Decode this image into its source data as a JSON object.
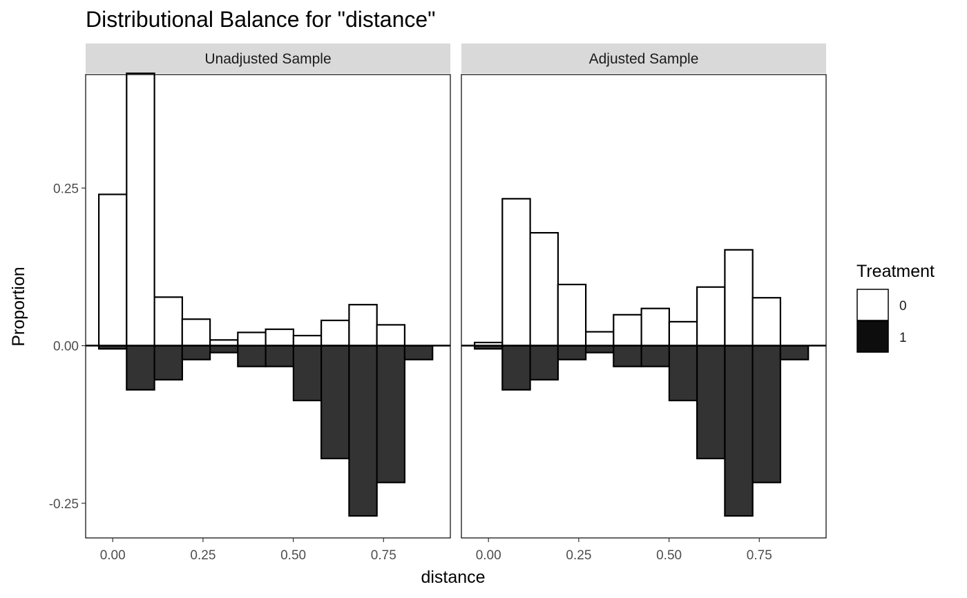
{
  "chart_data": {
    "type": "bar",
    "title": "Distributional Balance for \"distance\"",
    "xlabel": "distance",
    "ylabel": "Proportion",
    "xlim": [
      -0.075,
      0.935
    ],
    "ylim": [
      -0.305,
      0.43
    ],
    "x_ticks": [
      0.0,
      0.25,
      0.5,
      0.75
    ],
    "x_tick_labels": [
      "0.00",
      "0.25",
      "0.50",
      "0.75"
    ],
    "y_ticks": [
      -0.25,
      0.0,
      0.25
    ],
    "y_tick_labels": [
      "-0.25",
      "0.00",
      "0.25"
    ],
    "bin_width": 0.077,
    "bin_centers": [
      0.0,
      0.077,
      0.154,
      0.231,
      0.308,
      0.385,
      0.462,
      0.539,
      0.616,
      0.693,
      0.77,
      0.847
    ],
    "legend": {
      "title": "Treatment",
      "position": "right",
      "entries": [
        {
          "label": "0",
          "color": "#ffffff"
        },
        {
          "label": "1",
          "color": "#333333"
        }
      ]
    },
    "panels": [
      {
        "strip": "Unadjusted Sample",
        "series": [
          {
            "name": "0",
            "values": [
              0.24,
              0.432,
              0.077,
              0.042,
              0.009,
              0.021,
              0.026,
              0.016,
              0.04,
              0.065,
              0.033,
              0.0
            ]
          },
          {
            "name": "1",
            "values": [
              -0.005,
              -0.07,
              -0.054,
              -0.022,
              -0.011,
              -0.033,
              -0.033,
              -0.087,
              -0.179,
              -0.27,
              -0.217,
              -0.022
            ]
          }
        ]
      },
      {
        "strip": "Adjusted Sample",
        "series": [
          {
            "name": "0",
            "values": [
              0.005,
              0.233,
              0.179,
              0.097,
              0.022,
              0.049,
              0.059,
              0.038,
              0.093,
              0.152,
              0.076,
              0.0
            ]
          },
          {
            "name": "1",
            "values": [
              -0.005,
              -0.07,
              -0.054,
              -0.022,
              -0.011,
              -0.033,
              -0.033,
              -0.087,
              -0.179,
              -0.27,
              -0.217,
              -0.022
            ]
          }
        ]
      }
    ],
    "grid": false,
    "colors": {
      "fill_0": "#ffffff",
      "fill_1": "#333333",
      "outline": "#000000",
      "strip": "#d9d9d9"
    }
  }
}
